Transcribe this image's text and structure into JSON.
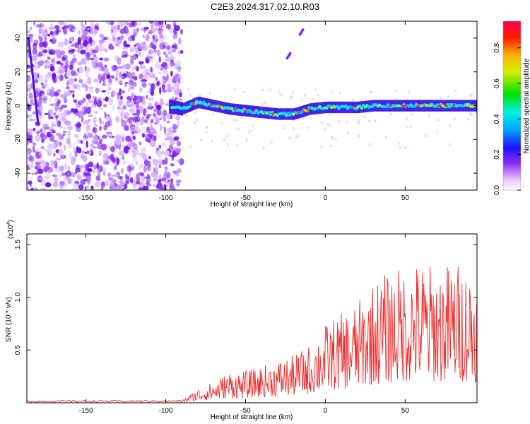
{
  "title": "C2E3.2024.317.02.10.R03",
  "colors": {
    "snr_line": "#ee2a2a",
    "band_low": "#5a10e8",
    "band_high": "#00e0ff",
    "scatter": "#7a2cf0"
  },
  "chart_data": [
    {
      "type": "heatmap",
      "name": "spectrogram",
      "xlabel": "Height of straight line (km)",
      "ylabel": "Frequency (Hz)",
      "xlim": [
        -187,
        95
      ],
      "ylim": [
        -50,
        50
      ],
      "xticks": [
        -150,
        -100,
        -50,
        0,
        50
      ],
      "yticks": [
        -40,
        -20,
        0,
        20,
        40
      ],
      "ridge": {
        "x": [
          -100,
          -90,
          -80,
          -70,
          -60,
          -50,
          -40,
          -30,
          -20,
          -10,
          0,
          10,
          20,
          30,
          40,
          50,
          60,
          70,
          80,
          90,
          95
        ],
        "y": [
          0,
          -2,
          2,
          0,
          -2,
          -3,
          -4,
          -5,
          -5,
          -2,
          -1,
          -1,
          -1,
          0,
          0,
          0,
          0,
          0,
          0,
          0,
          0
        ]
      },
      "streaks": [
        {
          "x": [
            -186,
            -180
          ],
          "y": [
            40,
            -10
          ]
        },
        {
          "x": [
            -16,
            -14
          ],
          "y": [
            42,
            45
          ]
        },
        {
          "x": [
            -24,
            -22
          ],
          "y": [
            28,
            31
          ]
        }
      ],
      "colorbar": {
        "label": "Normalized spectral amplitude",
        "ticks": [
          0.0,
          0.2,
          0.4,
          0.6,
          0.8
        ],
        "range": [
          0,
          0.95
        ]
      }
    },
    {
      "type": "line",
      "name": "snr",
      "xlabel": "Height of straight line (km)",
      "ylabel": "SNR (10 * v/v)",
      "yscale_label": "(x10",
      "yscale_exp": "4",
      "yscale_close": ")",
      "xlim": [
        -187,
        95
      ],
      "ylim": [
        0,
        1.6
      ],
      "xticks": [
        -150,
        -100,
        -50,
        0,
        50
      ],
      "yticks": [
        0.5,
        1.0,
        1.5
      ],
      "envelope": {
        "x": [
          -187,
          -90,
          -85,
          -80,
          -70,
          -60,
          -50,
          -40,
          -30,
          -20,
          -10,
          0,
          10,
          20,
          30,
          40,
          50,
          60,
          70,
          80,
          90,
          95
        ],
        "y": [
          0.02,
          0.02,
          0.08,
          0.13,
          0.2,
          0.3,
          0.3,
          0.35,
          0.4,
          0.45,
          0.55,
          0.75,
          0.85,
          0.95,
          1.15,
          1.25,
          1.3,
          1.35,
          1.3,
          1.35,
          1.3,
          1.3
        ]
      }
    }
  ]
}
